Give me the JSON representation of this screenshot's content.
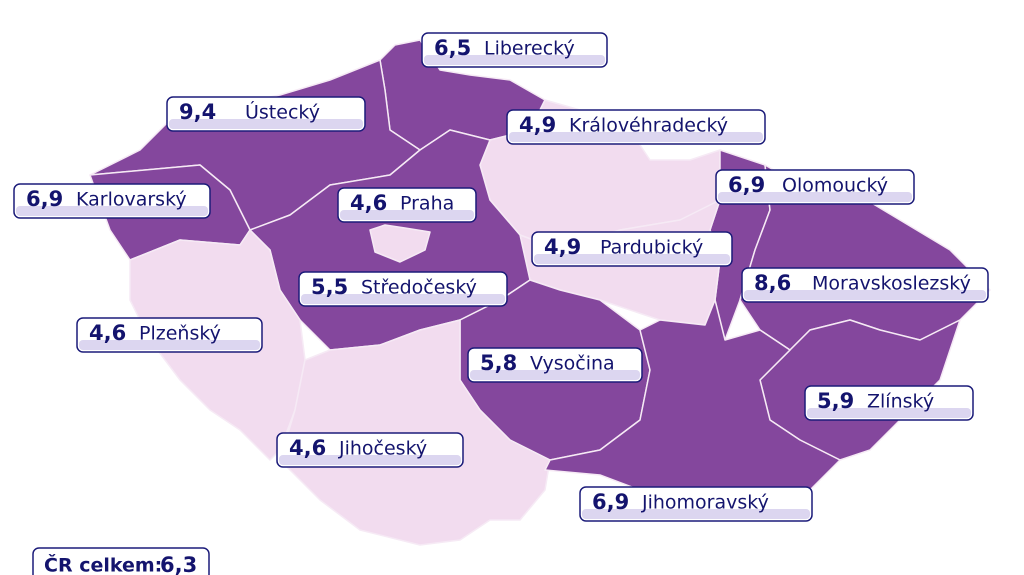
{
  "regions": [
    {
      "value": "6,5",
      "name": "Liberecký",
      "color": "#84479d"
    },
    {
      "value": "9,4",
      "name": "Ústecký",
      "color": "#84479d"
    },
    {
      "value": "4,9",
      "name": "Královéhradecký",
      "color": "#f2dcef"
    },
    {
      "value": "6,9",
      "name": "Karlovarský",
      "color": "#84479d"
    },
    {
      "value": "4,6",
      "name": "Praha",
      "color": "#f2dcef"
    },
    {
      "value": "6,9",
      "name": "Olomoucký",
      "color": "#84479d"
    },
    {
      "value": "4,9",
      "name": "Pardubický",
      "color": "#f2dcef"
    },
    {
      "value": "8,6",
      "name": "Moravskoslezský",
      "color": "#84479d"
    },
    {
      "value": "5,5",
      "name": "Středočeský",
      "color": "#84479d"
    },
    {
      "value": "4,6",
      "name": "Plzeňský",
      "color": "#f2dcef"
    },
    {
      "value": "5,8",
      "name": "Vysočina",
      "color": "#84479d"
    },
    {
      "value": "5,9",
      "name": "Zlínský",
      "color": "#84479d"
    },
    {
      "value": "4,6",
      "name": "Jihočeský",
      "color": "#f2dcef"
    },
    {
      "value": "6,9",
      "name": "Jihomoravský",
      "color": "#84479d"
    }
  ],
  "total": {
    "label": "ČR celkem:",
    "value": "6,3"
  }
}
